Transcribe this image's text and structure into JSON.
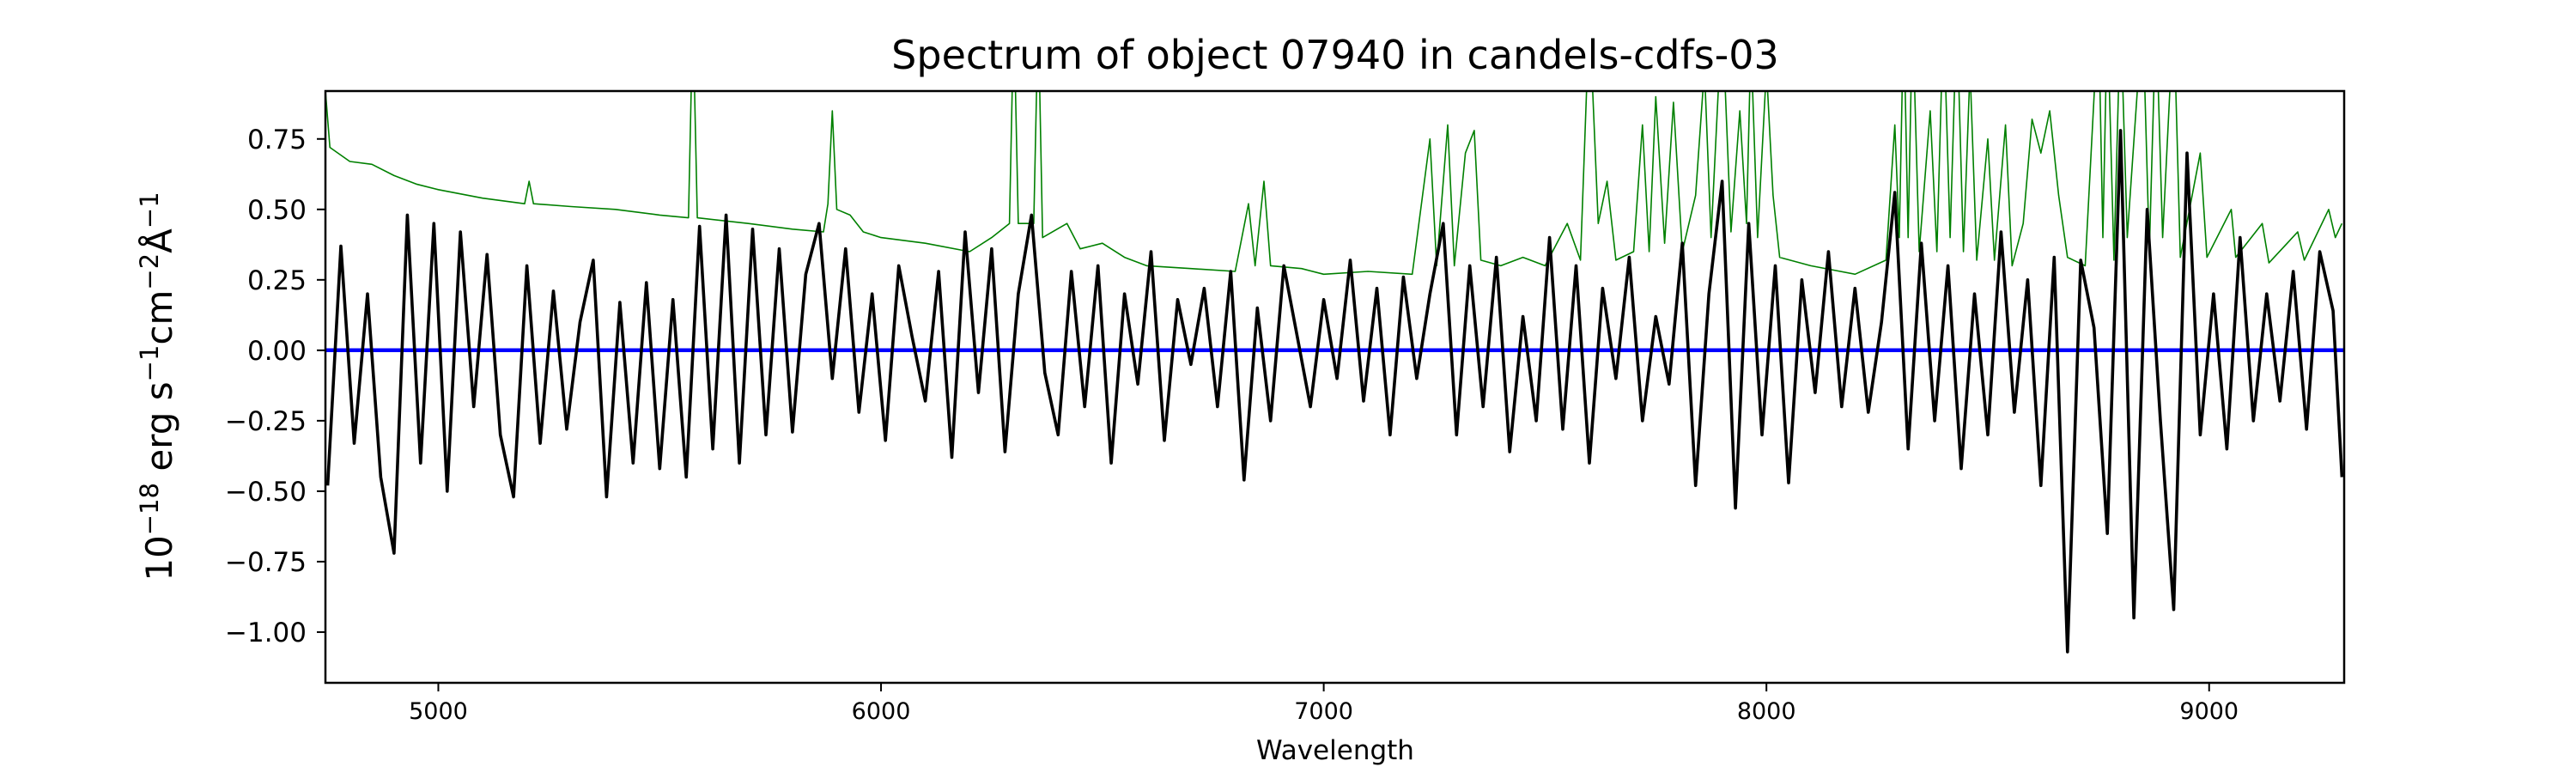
{
  "chart_data": {
    "type": "line",
    "title": "Spectrum of object 07940 in candels-cdfs-03",
    "xlabel": "Wavelength",
    "ylabel": {
      "base": "10",
      "exp1": "−18",
      "unit1": " erg s",
      "exp2": "−1",
      "unit2": "cm",
      "exp3": "−2",
      "unit3": "Å",
      "exp4": "−1"
    },
    "xlim": [
      4745,
      9305
    ],
    "ylim": [
      -1.18,
      0.92
    ],
    "xticks": [
      5000,
      6000,
      7000,
      8000,
      9000
    ],
    "xtick_labels": [
      "5000",
      "6000",
      "7000",
      "8000",
      "9000"
    ],
    "yticks": [
      0.75,
      0.5,
      0.25,
      0.0,
      -0.25,
      -0.5,
      -0.75,
      -1.0
    ],
    "ytick_labels": [
      "0.75",
      "0.50",
      "0.25",
      "0.00",
      "−0.25",
      "−0.50",
      "−0.75",
      "−1.00"
    ],
    "grid": false,
    "colors": {
      "flux": "#000000",
      "zero": "#0000ff",
      "model": "#008000"
    },
    "series": [
      {
        "role": "flux",
        "color": "#000000",
        "points": [
          [
            4750,
            -0.48
          ],
          [
            4780,
            0.37
          ],
          [
            4810,
            -0.33
          ],
          [
            4840,
            0.2
          ],
          [
            4870,
            -0.45
          ],
          [
            4900,
            -0.72
          ],
          [
            4930,
            0.48
          ],
          [
            4960,
            -0.4
          ],
          [
            4990,
            0.45
          ],
          [
            5020,
            -0.5
          ],
          [
            5050,
            0.42
          ],
          [
            5080,
            -0.2
          ],
          [
            5110,
            0.34
          ],
          [
            5140,
            -0.3
          ],
          [
            5170,
            -0.52
          ],
          [
            5200,
            0.3
          ],
          [
            5230,
            -0.33
          ],
          [
            5260,
            0.21
          ],
          [
            5290,
            -0.28
          ],
          [
            5320,
            0.1
          ],
          [
            5350,
            0.32
          ],
          [
            5380,
            -0.52
          ],
          [
            5410,
            0.17
          ],
          [
            5440,
            -0.4
          ],
          [
            5470,
            0.24
          ],
          [
            5500,
            -0.42
          ],
          [
            5530,
            0.18
          ],
          [
            5560,
            -0.45
          ],
          [
            5590,
            0.44
          ],
          [
            5620,
            -0.35
          ],
          [
            5650,
            0.48
          ],
          [
            5680,
            -0.4
          ],
          [
            5710,
            0.43
          ],
          [
            5740,
            -0.3
          ],
          [
            5770,
            0.36
          ],
          [
            5800,
            -0.29
          ],
          [
            5830,
            0.27
          ],
          [
            5860,
            0.45
          ],
          [
            5890,
            -0.1
          ],
          [
            5920,
            0.36
          ],
          [
            5950,
            -0.22
          ],
          [
            5980,
            0.2
          ],
          [
            6010,
            -0.32
          ],
          [
            6040,
            0.3
          ],
          [
            6070,
            0.05
          ],
          [
            6100,
            -0.18
          ],
          [
            6130,
            0.28
          ],
          [
            6160,
            -0.38
          ],
          [
            6190,
            0.42
          ],
          [
            6220,
            -0.15
          ],
          [
            6250,
            0.36
          ],
          [
            6280,
            -0.36
          ],
          [
            6310,
            0.2
          ],
          [
            6340,
            0.48
          ],
          [
            6370,
            -0.08
          ],
          [
            6400,
            -0.3
          ],
          [
            6430,
            0.28
          ],
          [
            6460,
            -0.2
          ],
          [
            6490,
            0.3
          ],
          [
            6520,
            -0.4
          ],
          [
            6550,
            0.2
          ],
          [
            6580,
            -0.12
          ],
          [
            6610,
            0.35
          ],
          [
            6640,
            -0.32
          ],
          [
            6670,
            0.18
          ],
          [
            6700,
            -0.05
          ],
          [
            6730,
            0.22
          ],
          [
            6760,
            -0.2
          ],
          [
            6790,
            0.28
          ],
          [
            6820,
            -0.46
          ],
          [
            6850,
            0.15
          ],
          [
            6880,
            -0.25
          ],
          [
            6910,
            0.3
          ],
          [
            6940,
            0.05
          ],
          [
            6970,
            -0.2
          ],
          [
            7000,
            0.18
          ],
          [
            7030,
            -0.1
          ],
          [
            7060,
            0.32
          ],
          [
            7090,
            -0.18
          ],
          [
            7120,
            0.22
          ],
          [
            7150,
            -0.3
          ],
          [
            7180,
            0.26
          ],
          [
            7210,
            -0.1
          ],
          [
            7240,
            0.2
          ],
          [
            7270,
            0.45
          ],
          [
            7300,
            -0.3
          ],
          [
            7330,
            0.3
          ],
          [
            7360,
            -0.2
          ],
          [
            7390,
            0.33
          ],
          [
            7420,
            -0.36
          ],
          [
            7450,
            0.12
          ],
          [
            7480,
            -0.25
          ],
          [
            7510,
            0.4
          ],
          [
            7540,
            -0.28
          ],
          [
            7570,
            0.3
          ],
          [
            7600,
            -0.4
          ],
          [
            7630,
            0.22
          ],
          [
            7660,
            -0.1
          ],
          [
            7690,
            0.33
          ],
          [
            7720,
            -0.25
          ],
          [
            7750,
            0.12
          ],
          [
            7780,
            -0.12
          ],
          [
            7810,
            0.38
          ],
          [
            7840,
            -0.48
          ],
          [
            7870,
            0.2
          ],
          [
            7900,
            0.6
          ],
          [
            7930,
            -0.56
          ],
          [
            7960,
            0.45
          ],
          [
            7990,
            -0.3
          ],
          [
            8020,
            0.3
          ],
          [
            8050,
            -0.47
          ],
          [
            8080,
            0.25
          ],
          [
            8110,
            -0.15
          ],
          [
            8140,
            0.35
          ],
          [
            8170,
            -0.2
          ],
          [
            8200,
            0.22
          ],
          [
            8230,
            -0.22
          ],
          [
            8260,
            0.1
          ],
          [
            8290,
            0.56
          ],
          [
            8320,
            -0.35
          ],
          [
            8350,
            0.38
          ],
          [
            8380,
            -0.25
          ],
          [
            8410,
            0.3
          ],
          [
            8440,
            -0.42
          ],
          [
            8470,
            0.2
          ],
          [
            8500,
            -0.3
          ],
          [
            8530,
            0.42
          ],
          [
            8560,
            -0.22
          ],
          [
            8590,
            0.25
          ],
          [
            8620,
            -0.48
          ],
          [
            8650,
            0.33
          ],
          [
            8680,
            -1.07
          ],
          [
            8710,
            0.32
          ],
          [
            8740,
            0.08
          ],
          [
            8770,
            -0.65
          ],
          [
            8800,
            0.78
          ],
          [
            8830,
            -0.95
          ],
          [
            8860,
            0.5
          ],
          [
            8890,
            -0.25
          ],
          [
            8920,
            -0.92
          ],
          [
            8950,
            0.7
          ],
          [
            8980,
            -0.3
          ],
          [
            9010,
            0.2
          ],
          [
            9040,
            -0.35
          ],
          [
            9070,
            0.4
          ],
          [
            9100,
            -0.25
          ],
          [
            9130,
            0.2
          ],
          [
            9160,
            -0.18
          ],
          [
            9190,
            0.28
          ],
          [
            9220,
            -0.28
          ],
          [
            9250,
            0.35
          ],
          [
            9280,
            0.14
          ],
          [
            9300,
            -0.45
          ]
        ]
      },
      {
        "role": "zero",
        "color": "#0000ff",
        "points": [
          [
            4745,
            0
          ],
          [
            9305,
            0
          ]
        ]
      },
      {
        "role": "model",
        "color": "#008000",
        "points": [
          [
            4745,
            0.92
          ],
          [
            4755,
            0.72
          ],
          [
            4800,
            0.67
          ],
          [
            4850,
            0.66
          ],
          [
            4900,
            0.62
          ],
          [
            4950,
            0.59
          ],
          [
            5000,
            0.57
          ],
          [
            5100,
            0.54
          ],
          [
            5195,
            0.52
          ],
          [
            5205,
            0.6
          ],
          [
            5215,
            0.52
          ],
          [
            5300,
            0.51
          ],
          [
            5400,
            0.5
          ],
          [
            5500,
            0.48
          ],
          [
            5565,
            0.47
          ],
          [
            5575,
            1.2
          ],
          [
            5585,
            0.47
          ],
          [
            5700,
            0.45
          ],
          [
            5800,
            0.43
          ],
          [
            5870,
            0.42
          ],
          [
            5880,
            0.52
          ],
          [
            5890,
            0.85
          ],
          [
            5900,
            0.5
          ],
          [
            5930,
            0.48
          ],
          [
            5960,
            0.42
          ],
          [
            6000,
            0.4
          ],
          [
            6100,
            0.38
          ],
          [
            6200,
            0.35
          ],
          [
            6250,
            0.4
          ],
          [
            6290,
            0.45
          ],
          [
            6300,
            1.2
          ],
          [
            6310,
            0.45
          ],
          [
            6345,
            0.45
          ],
          [
            6355,
            1.2
          ],
          [
            6365,
            0.4
          ],
          [
            6420,
            0.45
          ],
          [
            6450,
            0.36
          ],
          [
            6500,
            0.38
          ],
          [
            6550,
            0.33
          ],
          [
            6600,
            0.3
          ],
          [
            6700,
            0.29
          ],
          [
            6800,
            0.28
          ],
          [
            6830,
            0.52
          ],
          [
            6845,
            0.3
          ],
          [
            6865,
            0.6
          ],
          [
            6880,
            0.3
          ],
          [
            6950,
            0.29
          ],
          [
            7000,
            0.27
          ],
          [
            7100,
            0.28
          ],
          [
            7200,
            0.27
          ],
          [
            7240,
            0.75
          ],
          [
            7255,
            0.3
          ],
          [
            7280,
            0.8
          ],
          [
            7295,
            0.3
          ],
          [
            7320,
            0.7
          ],
          [
            7340,
            0.78
          ],
          [
            7355,
            0.32
          ],
          [
            7400,
            0.3
          ],
          [
            7450,
            0.33
          ],
          [
            7500,
            0.3
          ],
          [
            7550,
            0.45
          ],
          [
            7580,
            0.32
          ],
          [
            7600,
            1.2
          ],
          [
            7620,
            0.45
          ],
          [
            7640,
            0.6
          ],
          [
            7660,
            0.32
          ],
          [
            7700,
            0.35
          ],
          [
            7720,
            0.8
          ],
          [
            7735,
            0.35
          ],
          [
            7750,
            0.9
          ],
          [
            7770,
            0.38
          ],
          [
            7790,
            0.88
          ],
          [
            7810,
            0.35
          ],
          [
            7840,
            0.55
          ],
          [
            7860,
            1.0
          ],
          [
            7875,
            0.4
          ],
          [
            7900,
            1.2
          ],
          [
            7920,
            0.42
          ],
          [
            7940,
            0.85
          ],
          [
            7955,
            0.45
          ],
          [
            7965,
            1.1
          ],
          [
            7980,
            0.4
          ],
          [
            8000,
            1.0
          ],
          [
            8015,
            0.55
          ],
          [
            8030,
            0.33
          ],
          [
            8100,
            0.3
          ],
          [
            8200,
            0.27
          ],
          [
            8270,
            0.32
          ],
          [
            8290,
            0.8
          ],
          [
            8300,
            0.4
          ],
          [
            8310,
            1.2
          ],
          [
            8320,
            0.4
          ],
          [
            8330,
            1.2
          ],
          [
            8345,
            0.35
          ],
          [
            8370,
            0.85
          ],
          [
            8385,
            0.35
          ],
          [
            8400,
            1.2
          ],
          [
            8415,
            0.4
          ],
          [
            8430,
            1.2
          ],
          [
            8445,
            0.35
          ],
          [
            8460,
            1.0
          ],
          [
            8475,
            0.32
          ],
          [
            8500,
            0.75
          ],
          [
            8515,
            0.32
          ],
          [
            8540,
            0.8
          ],
          [
            8555,
            0.3
          ],
          [
            8580,
            0.45
          ],
          [
            8600,
            0.82
          ],
          [
            8620,
            0.7
          ],
          [
            8640,
            0.85
          ],
          [
            8660,
            0.55
          ],
          [
            8680,
            0.33
          ],
          [
            8720,
            0.3
          ],
          [
            8750,
            1.2
          ],
          [
            8760,
            0.4
          ],
          [
            8770,
            1.2
          ],
          [
            8785,
            0.32
          ],
          [
            8800,
            1.2
          ],
          [
            8815,
            0.4
          ],
          [
            8850,
            1.2
          ],
          [
            8865,
            0.35
          ],
          [
            8880,
            1.2
          ],
          [
            8895,
            0.4
          ],
          [
            8920,
            1.2
          ],
          [
            8935,
            0.33
          ],
          [
            8980,
            0.7
          ],
          [
            8995,
            0.33
          ],
          [
            9050,
            0.5
          ],
          [
            9060,
            0.33
          ],
          [
            9120,
            0.45
          ],
          [
            9135,
            0.31
          ],
          [
            9200,
            0.42
          ],
          [
            9215,
            0.32
          ],
          [
            9270,
            0.5
          ],
          [
            9285,
            0.4
          ],
          [
            9300,
            0.45
          ]
        ]
      }
    ]
  }
}
